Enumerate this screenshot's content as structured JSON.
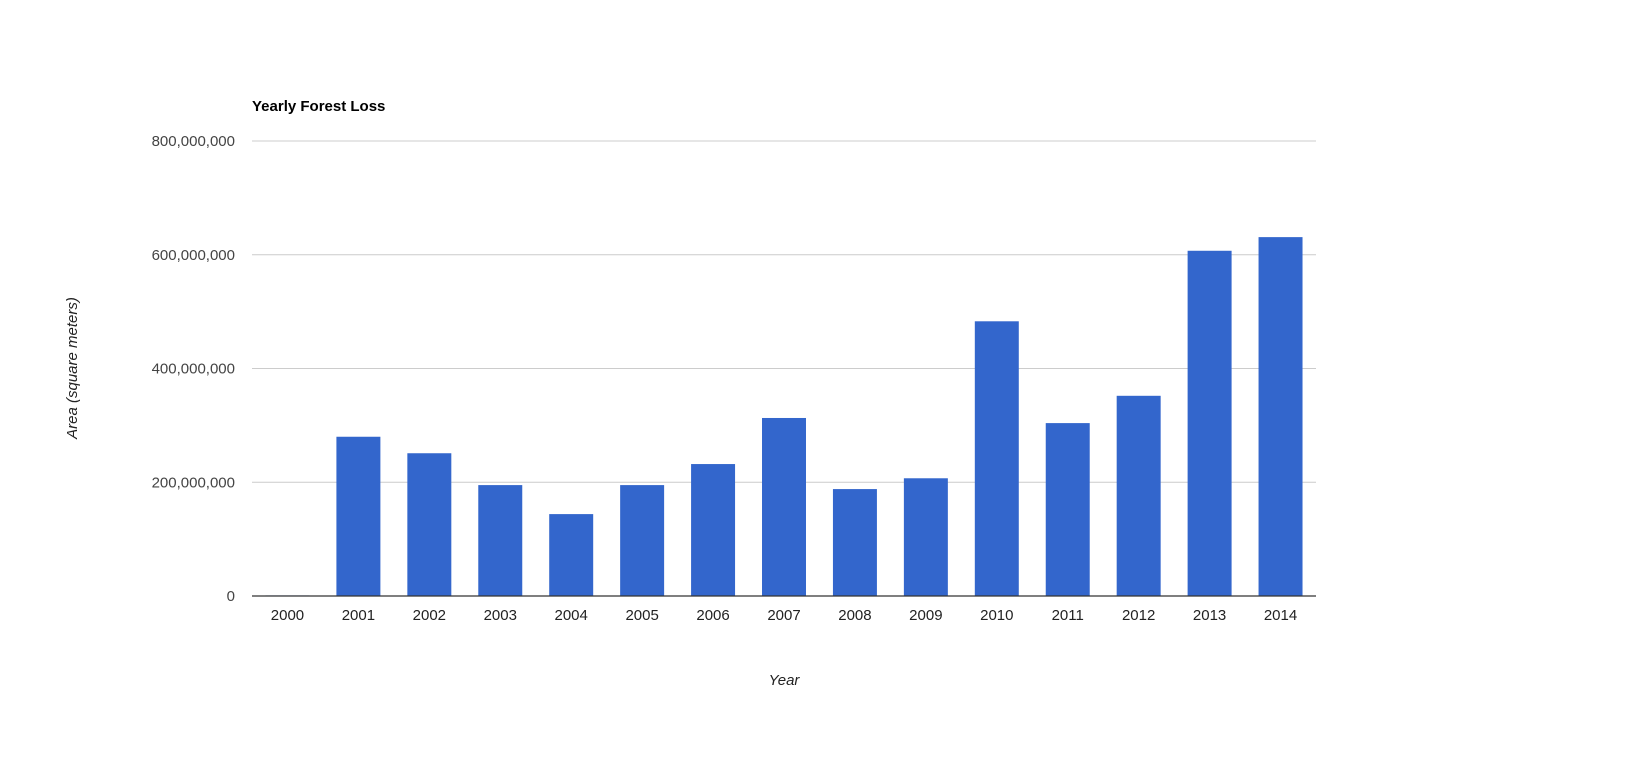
{
  "chart_data": {
    "type": "bar",
    "title": "Yearly Forest Loss",
    "xlabel": "Year",
    "ylabel": "Area (square meters)",
    "categories": [
      "2000",
      "2001",
      "2002",
      "2003",
      "2004",
      "2005",
      "2006",
      "2007",
      "2008",
      "2009",
      "2010",
      "2011",
      "2012",
      "2013",
      "2014"
    ],
    "values": [
      1000000,
      280000000,
      251000000,
      195000000,
      144000000,
      195000000,
      232000000,
      313000000,
      188000000,
      207000000,
      483000000,
      304000000,
      352000000,
      607000000,
      631000000
    ],
    "ylim": [
      0,
      800000000
    ],
    "yticks": [
      0,
      200000000,
      400000000,
      600000000,
      800000000
    ],
    "ytick_labels": [
      "0",
      "200,000,000",
      "400,000,000",
      "600,000,000",
      "800,000,000"
    ],
    "grid": true,
    "legend": "none",
    "colors": {
      "bar": "#3366cc",
      "grid": "#cccccc",
      "axis": "#333333"
    }
  }
}
